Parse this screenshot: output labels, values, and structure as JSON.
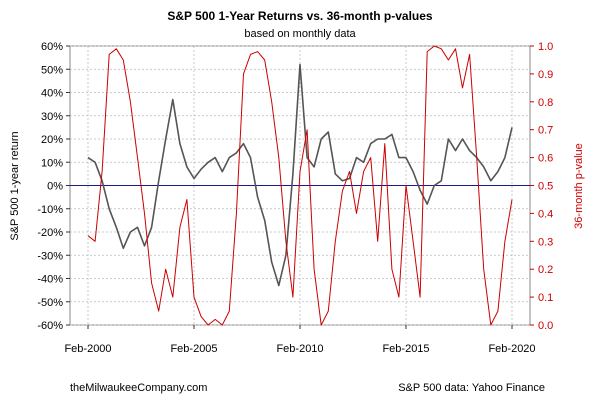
{
  "chart_data": {
    "type": "line",
    "title": "S&P 500 1-Year Returns vs. 36-month p-values",
    "subtitle": "based on monthly data",
    "ylabel": "S&P 500 1-year return",
    "y2label": "36-month p-value",
    "ylim": [
      -0.6,
      0.6
    ],
    "y2lim": [
      0.0,
      1.0
    ],
    "xlim": [
      "2000-02",
      "2020-02"
    ],
    "left_ticks": [
      "-60%",
      "-50%",
      "-40%",
      "-30%",
      "-20%",
      "-10%",
      "0%",
      "10%",
      "20%",
      "30%",
      "40%",
      "50%",
      "60%"
    ],
    "right_ticks": [
      "0.0",
      "0.1",
      "0.2",
      "0.3",
      "0.4",
      "0.5",
      "0.6",
      "0.7",
      "0.8",
      "0.9",
      "1.0"
    ],
    "x_ticks": [
      "Feb-2000",
      "Feb-2005",
      "Feb-2010",
      "Feb-2015",
      "Feb-2020"
    ],
    "grid": true,
    "series": [
      {
        "color": "#555555",
        "axis": "left",
        "x": [
          "2000-02",
          "2000-06",
          "2000-10",
          "2001-02",
          "2001-06",
          "2001-10",
          "2002-02",
          "2002-06",
          "2002-10",
          "2003-02",
          "2003-06",
          "2003-10",
          "2004-02",
          "2004-06",
          "2004-10",
          "2005-02",
          "2005-06",
          "2005-10",
          "2006-02",
          "2006-06",
          "2006-10",
          "2007-02",
          "2007-06",
          "2007-10",
          "2008-02",
          "2008-06",
          "2008-10",
          "2009-02",
          "2009-06",
          "2009-10",
          "2010-02",
          "2010-06",
          "2010-10",
          "2011-02",
          "2011-06",
          "2011-10",
          "2012-02",
          "2012-06",
          "2012-10",
          "2013-02",
          "2013-06",
          "2013-10",
          "2014-02",
          "2014-06",
          "2014-10",
          "2015-02",
          "2015-06",
          "2015-10",
          "2016-02",
          "2016-06",
          "2016-10",
          "2017-02",
          "2017-06",
          "2017-10",
          "2018-02",
          "2018-06",
          "2018-10",
          "2019-02",
          "2019-06",
          "2019-10",
          "2020-02"
        ],
        "values": [
          0.12,
          0.1,
          0.02,
          -0.1,
          -0.18,
          -0.27,
          -0.2,
          -0.18,
          -0.26,
          -0.18,
          0.02,
          0.2,
          0.37,
          0.18,
          0.08,
          0.03,
          0.07,
          0.1,
          0.12,
          0.06,
          0.12,
          0.14,
          0.18,
          0.12,
          -0.05,
          -0.15,
          -0.33,
          -0.43,
          -0.3,
          0.05,
          0.52,
          0.12,
          0.08,
          0.2,
          0.23,
          0.05,
          0.02,
          0.03,
          0.12,
          0.1,
          0.18,
          0.2,
          0.2,
          0.22,
          0.12,
          0.12,
          0.06,
          -0.02,
          -0.08,
          0.0,
          0.02,
          0.2,
          0.15,
          0.2,
          0.15,
          0.12,
          0.08,
          0.02,
          0.06,
          0.12,
          0.25
        ]
      },
      {
        "color": "#cc0000",
        "axis": "right",
        "x": [
          "2000-02",
          "2000-06",
          "2000-10",
          "2001-02",
          "2001-06",
          "2001-10",
          "2002-02",
          "2002-06",
          "2002-10",
          "2003-02",
          "2003-06",
          "2003-10",
          "2004-02",
          "2004-06",
          "2004-10",
          "2005-02",
          "2005-06",
          "2005-10",
          "2006-02",
          "2006-06",
          "2006-10",
          "2007-02",
          "2007-06",
          "2007-10",
          "2008-02",
          "2008-06",
          "2008-10",
          "2009-02",
          "2009-06",
          "2009-10",
          "2010-02",
          "2010-06",
          "2010-10",
          "2011-02",
          "2011-06",
          "2011-10",
          "2012-02",
          "2012-06",
          "2012-10",
          "2013-02",
          "2013-06",
          "2013-10",
          "2014-02",
          "2014-06",
          "2014-10",
          "2015-02",
          "2015-06",
          "2015-10",
          "2016-02",
          "2016-06",
          "2016-10",
          "2017-02",
          "2017-06",
          "2017-10",
          "2018-02",
          "2018-06",
          "2018-10",
          "2019-02",
          "2019-06",
          "2019-10",
          "2020-02"
        ],
        "values": [
          0.32,
          0.3,
          0.55,
          0.97,
          0.99,
          0.95,
          0.8,
          0.6,
          0.4,
          0.15,
          0.05,
          0.2,
          0.1,
          0.35,
          0.45,
          0.1,
          0.03,
          0.0,
          0.02,
          0.0,
          0.05,
          0.4,
          0.9,
          0.97,
          0.98,
          0.95,
          0.8,
          0.6,
          0.3,
          0.1,
          0.55,
          0.7,
          0.2,
          0.0,
          0.05,
          0.3,
          0.48,
          0.55,
          0.4,
          0.55,
          0.6,
          0.3,
          0.65,
          0.2,
          0.1,
          0.5,
          0.3,
          0.1,
          0.98,
          1.0,
          0.99,
          0.95,
          0.99,
          0.85,
          0.97,
          0.6,
          0.2,
          0.0,
          0.05,
          0.3,
          0.45
        ]
      }
    ]
  },
  "footer": {
    "left": "theMilwaukeeCompany.com",
    "right": "S&P 500 data: Yahoo Finance"
  }
}
